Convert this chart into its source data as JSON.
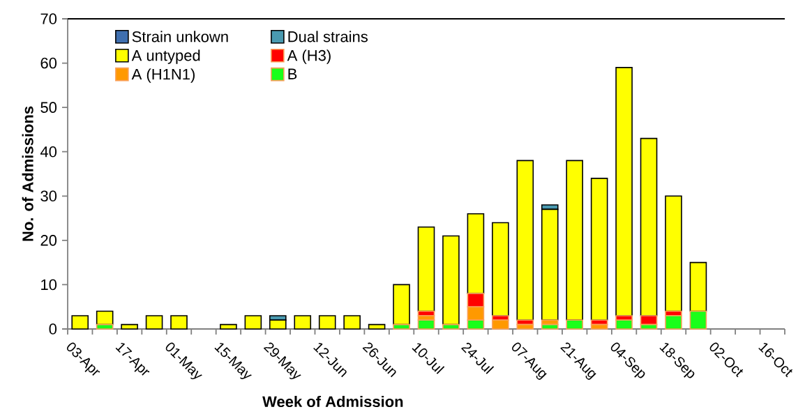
{
  "chart_data": {
    "type": "bar",
    "stacked": true,
    "xlabel": "Week of Admission",
    "ylabel": "No. of Admissions",
    "legend": "top left",
    "ylim": [
      0,
      70
    ],
    "yticks": [
      0,
      10,
      20,
      30,
      40,
      50,
      60,
      70
    ],
    "categories": [
      "03-Apr",
      null,
      "17-Apr",
      null,
      "01-May",
      null,
      "15-May",
      null,
      "29-May",
      null,
      "12-Jun",
      null,
      "26-Jun",
      null,
      "10-Jul",
      null,
      "24-Jul",
      null,
      "07-Aug",
      null,
      "21-Aug",
      null,
      "04-Sep",
      null,
      "18-Sep",
      null,
      "02-Oct",
      null,
      "16-Oct"
    ],
    "series": [
      {
        "name": "B",
        "color": "#1aff1a",
        "values": [
          0,
          1,
          0,
          0,
          0,
          0,
          0,
          0,
          0,
          0,
          0,
          0,
          0,
          1,
          2,
          1,
          2,
          0,
          0,
          1,
          2,
          0,
          2,
          1,
          3,
          4,
          0,
          0,
          0
        ]
      },
      {
        "name": "A (H1N1)",
        "color": "#ff9900",
        "values": [
          0,
          0,
          0,
          0,
          0,
          0,
          0,
          0,
          0,
          0,
          0,
          0,
          0,
          0,
          1,
          0,
          3,
          2,
          1,
          1,
          0,
          1,
          0,
          0,
          0,
          0,
          0,
          0,
          0
        ]
      },
      {
        "name": "A (H3)",
        "color": "#ff0000",
        "values": [
          0,
          0,
          0,
          0,
          0,
          0,
          0,
          0,
          0,
          0,
          0,
          0,
          0,
          0,
          1,
          0,
          3,
          1,
          1,
          0,
          0,
          1,
          1,
          2,
          1,
          0,
          0,
          0,
          0
        ]
      },
      {
        "name": "A untyped",
        "color": "#ffff00",
        "values": [
          3,
          3,
          1,
          3,
          3,
          0,
          1,
          3,
          2,
          3,
          3,
          3,
          1,
          9,
          19,
          20,
          18,
          21,
          36,
          25,
          36,
          32,
          56,
          40,
          26,
          11,
          0,
          0,
          0
        ]
      },
      {
        "name": "Dual strains",
        "color": "#4a9ab0",
        "values": [
          0,
          0,
          0,
          0,
          0,
          0,
          0,
          0,
          1,
          0,
          0,
          0,
          0,
          0,
          0,
          0,
          0,
          0,
          0,
          1,
          0,
          0,
          0,
          0,
          0,
          0,
          0,
          0,
          0
        ]
      },
      {
        "name": "Strain unkown",
        "color": "#3f6faf",
        "values": [
          0,
          0,
          0,
          0,
          0,
          0,
          0,
          0,
          0,
          0,
          0,
          0,
          0,
          0,
          0,
          0,
          0,
          0,
          0,
          0,
          0,
          0,
          0,
          0,
          0,
          0,
          0,
          0,
          0
        ]
      }
    ]
  }
}
